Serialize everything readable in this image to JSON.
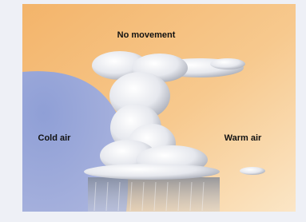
{
  "labels": {
    "top": "No movement",
    "left": "Cold air",
    "right": "Warm air"
  }
}
